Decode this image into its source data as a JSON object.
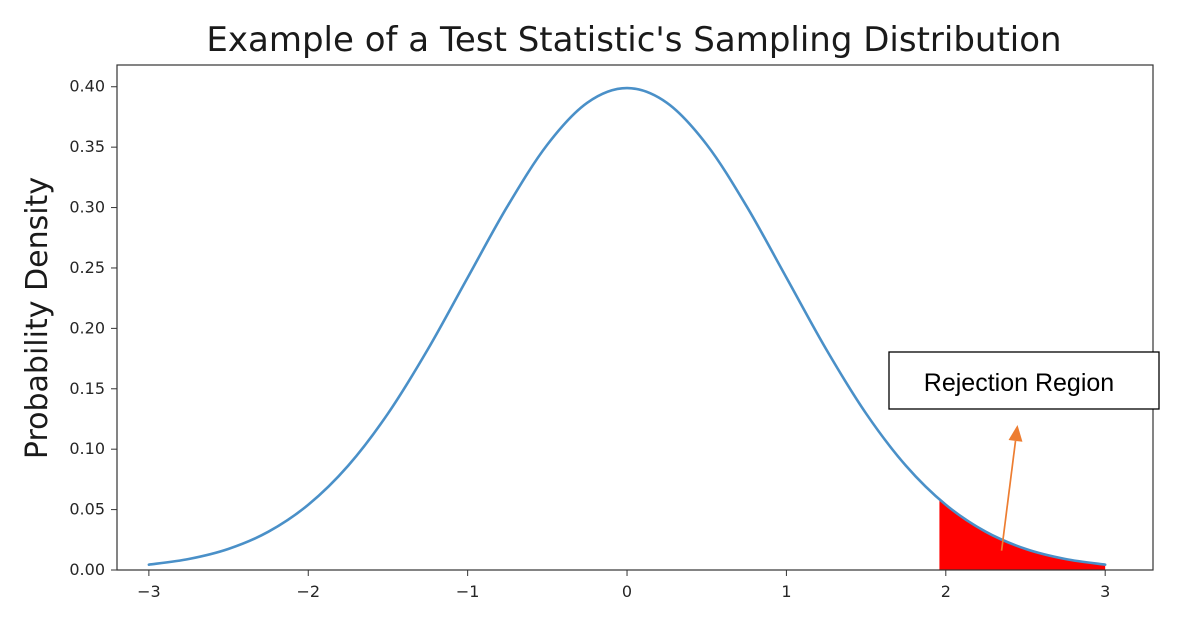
{
  "chart_data": {
    "type": "line",
    "title": "Example of a Test Statistic's Sampling Distribution",
    "xlabel": "",
    "ylabel": "Probability Density",
    "xlim": [
      -3.2,
      3.3
    ],
    "ylim": [
      0,
      0.418
    ],
    "xticks": [
      -3,
      -2,
      -1,
      0,
      1,
      2,
      3
    ],
    "xtick_labels": [
      "−3",
      "−2",
      "−1",
      "0",
      "1",
      "2",
      "3"
    ],
    "yticks": [
      0.0,
      0.05,
      0.1,
      0.15,
      0.2,
      0.25,
      0.3,
      0.35,
      0.4
    ],
    "ytick_labels": [
      "0.00",
      "0.05",
      "0.10",
      "0.15",
      "0.20",
      "0.25",
      "0.30",
      "0.35",
      "0.40"
    ],
    "grid": false,
    "series": [
      {
        "x": [
          -3.0,
          -2.75,
          -2.5,
          -2.25,
          -2.0,
          -1.75,
          -1.5,
          -1.25,
          -1.0,
          -0.75,
          -0.5,
          -0.25,
          0.0,
          0.25,
          0.5,
          0.75,
          1.0,
          1.25,
          1.5,
          1.75,
          2.0,
          2.25,
          2.5,
          2.75,
          3.0
        ],
        "values": [
          0.0044,
          0.0091,
          0.0175,
          0.0317,
          0.054,
          0.0863,
          0.1295,
          0.1826,
          0.242,
          0.3011,
          0.3521,
          0.3867,
          0.3989,
          0.3867,
          0.3521,
          0.3011,
          0.242,
          0.1826,
          0.1295,
          0.0863,
          0.054,
          0.0317,
          0.0175,
          0.0091,
          0.0044
        ],
        "color": "#4a90c8"
      }
    ],
    "shaded_region": {
      "x_start": 1.96,
      "x_end": 3.0,
      "color": "#ff0000"
    },
    "annotation": {
      "text": "Rejection Region",
      "arrow_color": "#ed7d31",
      "arrow_from": [
        2.35,
        0.016
      ],
      "arrow_to": [
        2.45,
        0.12
      ]
    }
  }
}
